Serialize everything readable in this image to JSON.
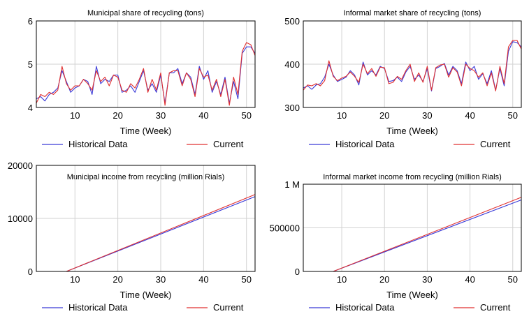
{
  "chart_data": [
    {
      "type": "line",
      "title": "Municipal share of recycling (tons)",
      "xlabel": "Time (Week)",
      "ylabel": "",
      "xlim": [
        1,
        52
      ],
      "ylim": [
        4,
        6
      ],
      "xticks": [
        10,
        20,
        30,
        40,
        50
      ],
      "yticks": [
        4,
        5,
        6
      ],
      "ytick_labels": [
        "4",
        "5",
        "6"
      ],
      "grid": true,
      "legend": "bottom",
      "x": [
        1,
        2,
        3,
        4,
        5,
        6,
        7,
        8,
        9,
        10,
        11,
        12,
        13,
        14,
        15,
        16,
        17,
        18,
        19,
        20,
        21,
        22,
        23,
        24,
        25,
        26,
        27,
        28,
        29,
        30,
        31,
        32,
        33,
        34,
        35,
        36,
        37,
        38,
        39,
        40,
        41,
        42,
        43,
        44,
        45,
        46,
        47,
        48,
        49,
        50,
        51,
        52
      ],
      "series": [
        {
          "name": "Historical Data",
          "color": "#3a3ad8",
          "values": [
            4.2,
            4.25,
            4.15,
            4.3,
            4.35,
            4.45,
            4.85,
            4.6,
            4.35,
            4.45,
            4.5,
            4.65,
            4.6,
            4.3,
            4.95,
            4.55,
            4.65,
            4.6,
            4.75,
            4.75,
            4.35,
            4.4,
            4.5,
            4.35,
            4.6,
            4.85,
            4.4,
            4.55,
            4.35,
            4.75,
            4.1,
            4.8,
            4.8,
            4.9,
            4.55,
            4.8,
            4.7,
            4.3,
            4.95,
            4.65,
            4.85,
            4.35,
            4.6,
            4.3,
            4.7,
            4.1,
            4.6,
            4.2,
            5.25,
            5.4,
            5.4,
            5.25
          ]
        },
        {
          "name": "Current",
          "color": "#e03030",
          "values": [
            4.1,
            4.3,
            4.25,
            4.35,
            4.3,
            4.4,
            4.95,
            4.55,
            4.4,
            4.5,
            4.5,
            4.65,
            4.55,
            4.4,
            4.85,
            4.6,
            4.7,
            4.5,
            4.75,
            4.7,
            4.4,
            4.35,
            4.55,
            4.45,
            4.65,
            4.9,
            4.35,
            4.65,
            4.4,
            4.8,
            4.05,
            4.8,
            4.85,
            4.85,
            4.5,
            4.8,
            4.65,
            4.25,
            4.9,
            4.7,
            4.75,
            4.4,
            4.65,
            4.25,
            4.65,
            4.05,
            4.7,
            4.3,
            5.3,
            5.5,
            5.45,
            5.2
          ]
        }
      ]
    },
    {
      "type": "line",
      "title": "Informal market share of recycling (tons)",
      "xlabel": "Time (Week)",
      "ylabel": "",
      "xlim": [
        1,
        52
      ],
      "ylim": [
        300,
        500
      ],
      "xticks": [
        10,
        20,
        30,
        40,
        50
      ],
      "yticks": [
        300,
        400,
        500
      ],
      "ytick_labels": [
        "300",
        "400",
        "500"
      ],
      "grid": true,
      "legend": "bottom",
      "x": [
        1,
        2,
        3,
        4,
        5,
        6,
        7,
        8,
        9,
        10,
        11,
        12,
        13,
        14,
        15,
        16,
        17,
        18,
        19,
        20,
        21,
        22,
        23,
        24,
        25,
        26,
        27,
        28,
        29,
        30,
        31,
        32,
        33,
        34,
        35,
        36,
        37,
        38,
        39,
        40,
        41,
        42,
        43,
        44,
        45,
        46,
        47,
        48,
        49,
        50,
        51,
        52
      ],
      "series": [
        {
          "name": "Historical Data",
          "color": "#3a3ad8",
          "values": [
            345,
            350,
            342,
            352,
            355,
            370,
            400,
            375,
            360,
            365,
            370,
            385,
            375,
            352,
            405,
            375,
            385,
            375,
            395,
            390,
            360,
            362,
            370,
            360,
            382,
            395,
            365,
            375,
            360,
            390,
            338,
            390,
            395,
            402,
            375,
            395,
            385,
            355,
            405,
            385,
            395,
            365,
            378,
            355,
            385,
            340,
            390,
            350,
            430,
            452,
            450,
            440
          ]
        },
        {
          "name": "Current",
          "color": "#e03030",
          "values": [
            340,
            352,
            350,
            355,
            350,
            362,
            408,
            372,
            362,
            368,
            372,
            382,
            372,
            358,
            400,
            378,
            390,
            372,
            393,
            392,
            355,
            358,
            372,
            365,
            385,
            400,
            360,
            380,
            358,
            395,
            340,
            392,
            398,
            400,
            370,
            392,
            382,
            350,
            400,
            390,
            385,
            370,
            380,
            350,
            380,
            338,
            395,
            355,
            440,
            455,
            455,
            435
          ]
        }
      ]
    },
    {
      "type": "line",
      "title": "Municipal income from recycling (million Rials)",
      "xlabel": "Time (Week)",
      "ylabel": "",
      "xlim": [
        1,
        52
      ],
      "ylim": [
        0,
        20000
      ],
      "xticks": [
        10,
        20,
        30,
        40,
        50
      ],
      "yticks": [
        0,
        10000,
        20000
      ],
      "ytick_labels": [
        "0",
        "10000",
        "20000"
      ],
      "grid": true,
      "legend": "bottom",
      "x": [
        1,
        8,
        52
      ],
      "series": [
        {
          "name": "Historical Data",
          "color": "#3a3ad8",
          "values": [
            0,
            0,
            14100
          ]
        },
        {
          "name": "Current",
          "color": "#e03030",
          "values": [
            0,
            0,
            14500
          ]
        }
      ]
    },
    {
      "type": "line",
      "title": "Informal market income from recycling (million Rials)",
      "xlabel": "Time (Week)",
      "ylabel": "",
      "xlim": [
        1,
        52
      ],
      "ylim": [
        0,
        1000000
      ],
      "xticks": [
        10,
        20,
        30,
        40,
        50
      ],
      "yticks": [
        0,
        500000,
        1000000
      ],
      "ytick_labels": [
        "0",
        "500000",
        "1 M"
      ],
      "grid": true,
      "legend": "bottom",
      "x": [
        1,
        8,
        52
      ],
      "series": [
        {
          "name": "Historical Data",
          "color": "#3a3ad8",
          "values": [
            0,
            0,
            820000
          ]
        },
        {
          "name": "Current",
          "color": "#e03030",
          "values": [
            0,
            0,
            850000
          ]
        }
      ]
    }
  ]
}
